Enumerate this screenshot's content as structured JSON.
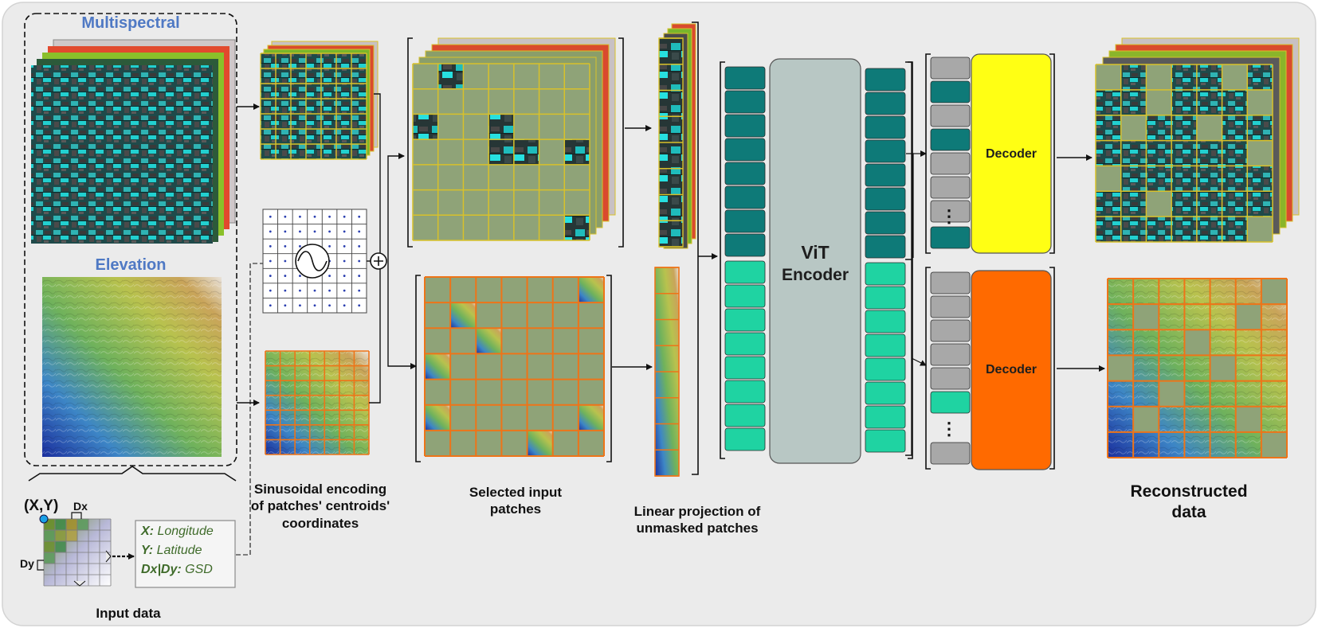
{
  "input": {
    "multispectral_title": "Multispectral",
    "elevation_title": "Elevation",
    "coord_label": "(X,Y)",
    "dx_label": "Dx",
    "dy_label": "Dy",
    "meta": {
      "x_key": "X:",
      "x_value": " Longitude",
      "y_key": "Y:",
      "y_value": " Latitude",
      "d_key": "Dx|Dy:",
      "d_value": " GSD"
    },
    "caption": "Input data"
  },
  "encoding": {
    "caption_line1": "Sinusoidal encoding",
    "caption_line2": "of patches' centroids'",
    "caption_line3": "coordinates"
  },
  "selection": {
    "caption_line1": "Selected input",
    "caption_line2": "patches"
  },
  "projection": {
    "caption_line1": "Linear projection of",
    "caption_line2": "unmasked patches"
  },
  "encoder": {
    "label_line1": "ViT",
    "label_line2": "Encoder"
  },
  "decoders": {
    "top_label": "Decoder",
    "bottom_label": "Decoder"
  },
  "output": {
    "caption_line1": "Reconstructed",
    "caption_line2": "data"
  },
  "colors": {
    "background": "#ebebeb",
    "grid_ms": "#d8c12a",
    "grid_dem": "#ee7418",
    "masked_patch": "#8fa378",
    "token_ms": "#0e7a78",
    "token_dem": "#1fd3a2",
    "token_mask": "#a8a8a8",
    "encoder_box": "#b8c7c4",
    "decoder_top": "#ffff14",
    "decoder_bottom": "#ff6a00",
    "title_blue": "#4f79c4"
  }
}
